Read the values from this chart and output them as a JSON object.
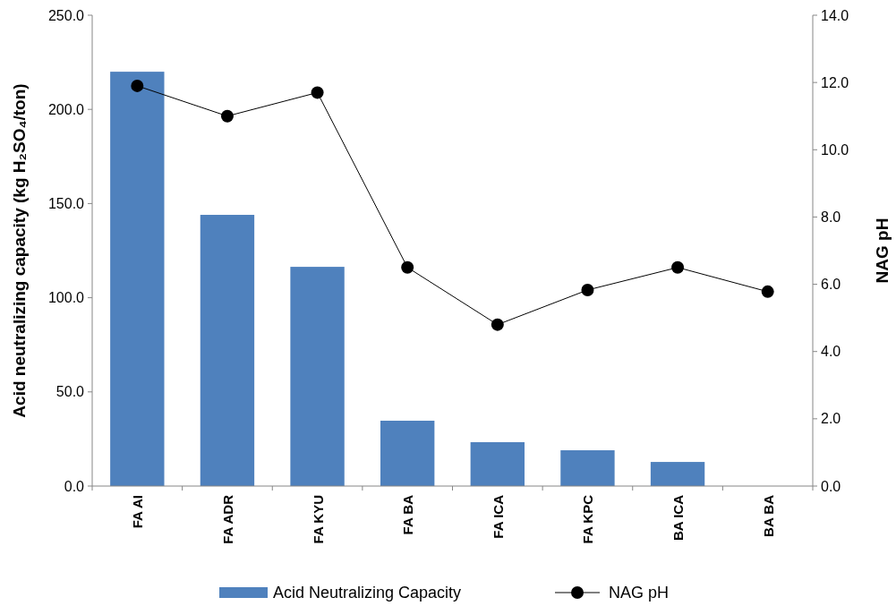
{
  "chart_data": {
    "type": "bar",
    "categories": [
      "FA AI",
      "FA ADR",
      "FA KYU",
      "FA BA",
      "FA ICA",
      "FA KPC",
      "BA ICA",
      "BA BA"
    ],
    "series": [
      {
        "name": "Acid Neutralizing Capacity",
        "color": "#4f81bd",
        "values": [
          220,
          144,
          116.4,
          34.7,
          23.3,
          19,
          12.8,
          0
        ]
      },
      {
        "name": "NAG pH",
        "type": "line",
        "axis": "y2",
        "color": "#000000",
        "marker": "circle",
        "values": [
          11.9,
          11,
          11.7,
          6.5,
          4.8,
          5.83,
          6.5,
          5.78
        ]
      }
    ],
    "ylabel": "Acid neutralizing capacity (kg H₂SO₄/ton)",
    "y2label": "NAG pH",
    "ylim": [
      0,
      250
    ],
    "yticks": [
      {
        "value": 0,
        "label": "0.0"
      },
      {
        "value": 50,
        "label": "50.0"
      },
      {
        "value": 100,
        "label": "100.0"
      },
      {
        "value": 150,
        "label": "150.0"
      },
      {
        "value": 200,
        "label": "200.0"
      },
      {
        "value": 250,
        "label": "250.0"
      }
    ],
    "y2lim": [
      0,
      14
    ],
    "y2ticks": [
      {
        "value": 0,
        "label": "0.0"
      },
      {
        "value": 2,
        "label": "2.0"
      },
      {
        "value": 4,
        "label": "4.0"
      },
      {
        "value": 6,
        "label": "6.0"
      },
      {
        "value": 8,
        "label": "8.0"
      },
      {
        "value": 10,
        "label": "10.0"
      },
      {
        "value": 12,
        "label": "12.0"
      },
      {
        "value": 14,
        "label": "14.0"
      }
    ],
    "legend": "bottom",
    "grid": false
  }
}
